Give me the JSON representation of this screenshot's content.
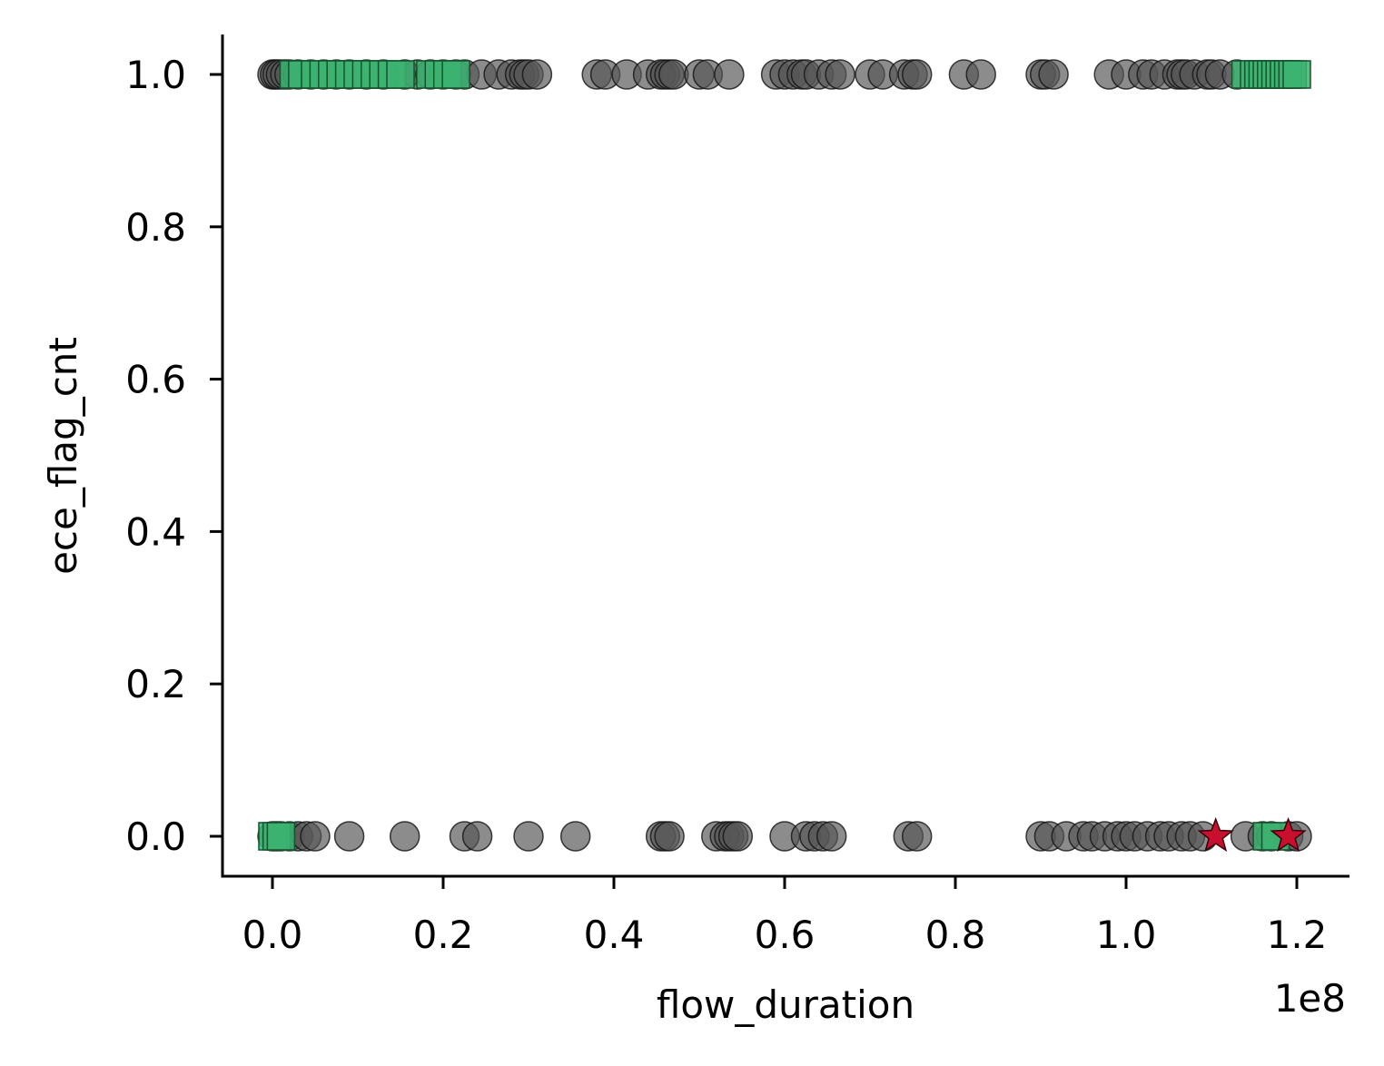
{
  "chart_data": {
    "type": "scatter",
    "xlabel": "flow_duration",
    "ylabel": "ece_flag_cnt",
    "x_offset_text": "1e8",
    "x_scale_exponent": 8,
    "xlim": [
      -0.05,
      1.26
    ],
    "ylim": [
      -0.05,
      1.05
    ],
    "x_ticks": [
      0.0,
      0.2,
      0.4,
      0.6,
      0.8,
      1.0,
      1.2
    ],
    "x_tick_labels": [
      "0.0",
      "0.2",
      "0.4",
      "0.6",
      "0.8",
      "1.0",
      "1.2"
    ],
    "y_ticks": [
      0.0,
      0.2,
      0.4,
      0.6,
      0.8,
      1.0
    ],
    "y_tick_labels": [
      "0.0",
      "0.2",
      "0.4",
      "0.6",
      "0.8",
      "1.0"
    ],
    "grid": false,
    "legend": "none",
    "series": [
      {
        "marker": "circle",
        "color": "#555555",
        "points": [
          [
            0.0,
            1
          ],
          [
            0.003,
            1
          ],
          [
            0.006,
            1
          ],
          [
            0.01,
            1
          ],
          [
            0.015,
            1
          ],
          [
            0.02,
            1
          ],
          [
            0.03,
            1
          ],
          [
            0.045,
            1
          ],
          [
            0.06,
            1
          ],
          [
            0.075,
            1
          ],
          [
            0.09,
            1
          ],
          [
            0.11,
            1
          ],
          [
            0.13,
            1
          ],
          [
            0.155,
            1
          ],
          [
            0.17,
            1
          ],
          [
            0.185,
            1
          ],
          [
            0.2,
            1
          ],
          [
            0.215,
            1
          ],
          [
            0.225,
            1
          ],
          [
            0.245,
            1
          ],
          [
            0.265,
            1
          ],
          [
            0.28,
            1
          ],
          [
            0.29,
            1
          ],
          [
            0.295,
            1
          ],
          [
            0.3,
            1
          ],
          [
            0.31,
            1
          ],
          [
            0.38,
            1
          ],
          [
            0.39,
            1
          ],
          [
            0.415,
            1
          ],
          [
            0.44,
            1
          ],
          [
            0.455,
            1
          ],
          [
            0.46,
            1
          ],
          [
            0.465,
            1
          ],
          [
            0.47,
            1
          ],
          [
            0.5,
            1
          ],
          [
            0.51,
            1
          ],
          [
            0.535,
            1
          ],
          [
            0.59,
            1
          ],
          [
            0.6,
            1
          ],
          [
            0.61,
            1
          ],
          [
            0.62,
            1
          ],
          [
            0.625,
            1
          ],
          [
            0.64,
            1
          ],
          [
            0.655,
            1
          ],
          [
            0.665,
            1
          ],
          [
            0.7,
            1
          ],
          [
            0.715,
            1
          ],
          [
            0.74,
            1
          ],
          [
            0.75,
            1
          ],
          [
            0.755,
            1
          ],
          [
            0.81,
            1
          ],
          [
            0.83,
            1
          ],
          [
            0.9,
            1
          ],
          [
            0.905,
            1
          ],
          [
            0.915,
            1
          ],
          [
            0.98,
            1
          ],
          [
            1.0,
            1
          ],
          [
            1.02,
            1
          ],
          [
            1.03,
            1
          ],
          [
            1.045,
            1
          ],
          [
            1.06,
            1
          ],
          [
            1.065,
            1
          ],
          [
            1.07,
            1
          ],
          [
            1.08,
            1
          ],
          [
            1.095,
            1
          ],
          [
            1.1,
            1
          ],
          [
            1.11,
            1
          ],
          [
            1.13,
            1
          ],
          [
            0.0,
            0
          ],
          [
            0.005,
            0
          ],
          [
            0.01,
            0
          ],
          [
            0.02,
            0
          ],
          [
            0.03,
            0
          ],
          [
            0.04,
            0
          ],
          [
            0.05,
            0
          ],
          [
            0.09,
            0
          ],
          [
            0.155,
            0
          ],
          [
            0.225,
            0
          ],
          [
            0.24,
            0
          ],
          [
            0.3,
            0
          ],
          [
            0.355,
            0
          ],
          [
            0.455,
            0
          ],
          [
            0.46,
            0
          ],
          [
            0.465,
            0
          ],
          [
            0.52,
            0
          ],
          [
            0.53,
            0
          ],
          [
            0.535,
            0
          ],
          [
            0.54,
            0
          ],
          [
            0.545,
            0
          ],
          [
            0.6,
            0
          ],
          [
            0.625,
            0
          ],
          [
            0.635,
            0
          ],
          [
            0.645,
            0
          ],
          [
            0.655,
            0
          ],
          [
            0.745,
            0
          ],
          [
            0.755,
            0
          ],
          [
            0.9,
            0
          ],
          [
            0.91,
            0
          ],
          [
            0.93,
            0
          ],
          [
            0.95,
            0
          ],
          [
            0.96,
            0
          ],
          [
            0.975,
            0
          ],
          [
            0.99,
            0
          ],
          [
            1.0,
            0
          ],
          [
            1.01,
            0
          ],
          [
            1.025,
            0
          ],
          [
            1.04,
            0
          ],
          [
            1.05,
            0
          ],
          [
            1.065,
            0
          ],
          [
            1.075,
            0
          ],
          [
            1.09,
            0
          ],
          [
            1.14,
            0
          ],
          [
            1.16,
            0
          ],
          [
            1.17,
            0
          ],
          [
            1.19,
            0
          ],
          [
            1.2,
            0
          ]
        ]
      },
      {
        "marker": "square",
        "color": "#3cb371",
        "points": [
          [
            0.025,
            1
          ],
          [
            0.035,
            1
          ],
          [
            0.05,
            1
          ],
          [
            0.06,
            1
          ],
          [
            0.07,
            1
          ],
          [
            0.08,
            1
          ],
          [
            0.09,
            1
          ],
          [
            0.1,
            1
          ],
          [
            0.11,
            1
          ],
          [
            0.12,
            1
          ],
          [
            0.13,
            1
          ],
          [
            0.14,
            1
          ],
          [
            0.15,
            1
          ],
          [
            0.185,
            1
          ],
          [
            0.195,
            1
          ],
          [
            0.205,
            1
          ],
          [
            0.215,
            1
          ],
          [
            1.14,
            1
          ],
          [
            1.15,
            1
          ],
          [
            1.155,
            1
          ],
          [
            1.16,
            1
          ],
          [
            1.165,
            1
          ],
          [
            1.17,
            1
          ],
          [
            1.175,
            1
          ],
          [
            1.18,
            1
          ],
          [
            1.185,
            1
          ],
          [
            1.19,
            1
          ],
          [
            1.195,
            1
          ],
          [
            1.2,
            1
          ],
          [
            0.0,
            0
          ],
          [
            0.005,
            0
          ],
          [
            0.01,
            0
          ],
          [
            1.165,
            0
          ],
          [
            1.175,
            0
          ]
        ]
      },
      {
        "marker": "star",
        "color": "#c8102e",
        "points": [
          [
            1.105,
            0
          ],
          [
            1.19,
            0
          ]
        ]
      }
    ]
  }
}
